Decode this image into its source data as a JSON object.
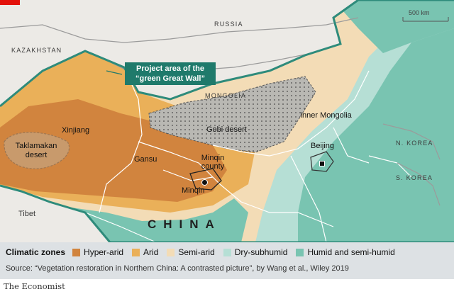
{
  "map": {
    "countries": {
      "russia": "RUSSIA",
      "kazakhstan": "KAZAKHSTAN",
      "mongolia": "MONGOLIA",
      "n_korea": "N. KOREA",
      "s_korea": "S. KOREA",
      "china": "CHINA"
    },
    "regions": {
      "xinjiang": "Xinjiang",
      "gansu": "Gansu",
      "inner_mongolia": "Inner Mongolia",
      "tibet": "Tibet",
      "beijing": "Beijing",
      "minqin": "Minqin",
      "minqin_county": "Minqin county",
      "taklamakan": "Taklamakan desert",
      "gobi": "Gobi desert"
    },
    "callout": "Project area of the “green Great Wall”",
    "scale_bar": "500 km"
  },
  "legend": {
    "title": "Climatic zones",
    "items": [
      {
        "label": "Hyper-arid",
        "color": "#d1843e"
      },
      {
        "label": "Arid",
        "color": "#eab059"
      },
      {
        "label": "Semi-arid",
        "color": "#f3dcb6"
      },
      {
        "label": "Dry-subhumid",
        "color": "#b6dfd5"
      },
      {
        "label": "Humid and semi-humid",
        "color": "#79c4b1"
      }
    ],
    "source": "Source: “Vegetation restoration in Northern China: A contrasted picture”, by Wang et al., Wiley 2019"
  },
  "footer": {
    "brand": "The Economist",
    "brand_color": "#e3120b"
  },
  "colors": {
    "project_outline": "#2e8b7b",
    "callout_box": "#1f7a6b",
    "land_outside": "#eceae6",
    "sea": "#dde9f1"
  }
}
